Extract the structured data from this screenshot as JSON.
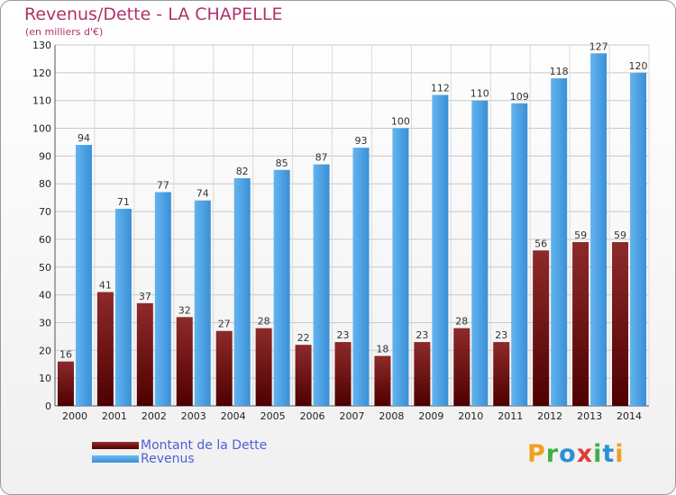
{
  "header": {
    "title": "Revenus/Dette - LA CHAPELLE",
    "subtitle": "(en milliers d'€)"
  },
  "chart_data": {
    "type": "bar",
    "categories": [
      "2000",
      "2001",
      "2002",
      "2003",
      "2004",
      "2005",
      "2006",
      "2007",
      "2008",
      "2009",
      "2010",
      "2011",
      "2012",
      "2013",
      "2014"
    ],
    "series": [
      {
        "name": "Montant de la Dette",
        "color": "#7a1a1a",
        "values": [
          16,
          41,
          37,
          32,
          27,
          28,
          22,
          23,
          18,
          23,
          28,
          23,
          56,
          59,
          59
        ]
      },
      {
        "name": "Revenus",
        "color": "#4aa3e8",
        "values": [
          94,
          71,
          77,
          74,
          82,
          85,
          87,
          93,
          100,
          112,
          110,
          109,
          118,
          127,
          120
        ]
      }
    ],
    "ylim": [
      0,
      130
    ],
    "yticks": [
      0,
      10,
      20,
      30,
      40,
      50,
      60,
      70,
      80,
      90,
      100,
      110,
      120,
      130
    ],
    "grid": true,
    "legend_position": "bottom-left"
  },
  "legend": {
    "items": [
      {
        "label": "Montant de la Dette",
        "color": "#7a1a1a"
      },
      {
        "label": "Revenus",
        "color": "#4aa3e8"
      }
    ]
  },
  "logo": {
    "text": "Proxiti",
    "letters": [
      {
        "char": "P",
        "color": "#f0a020"
      },
      {
        "char": "r",
        "color": "#3fae49"
      },
      {
        "char": "o",
        "color": "#2d8fd5"
      },
      {
        "char": "x",
        "color": "#e03a3a"
      },
      {
        "char": "i",
        "color": "#3fae49"
      },
      {
        "char": "t",
        "color": "#2d8fd5"
      },
      {
        "char": "i",
        "color": "#f0a020"
      }
    ]
  }
}
